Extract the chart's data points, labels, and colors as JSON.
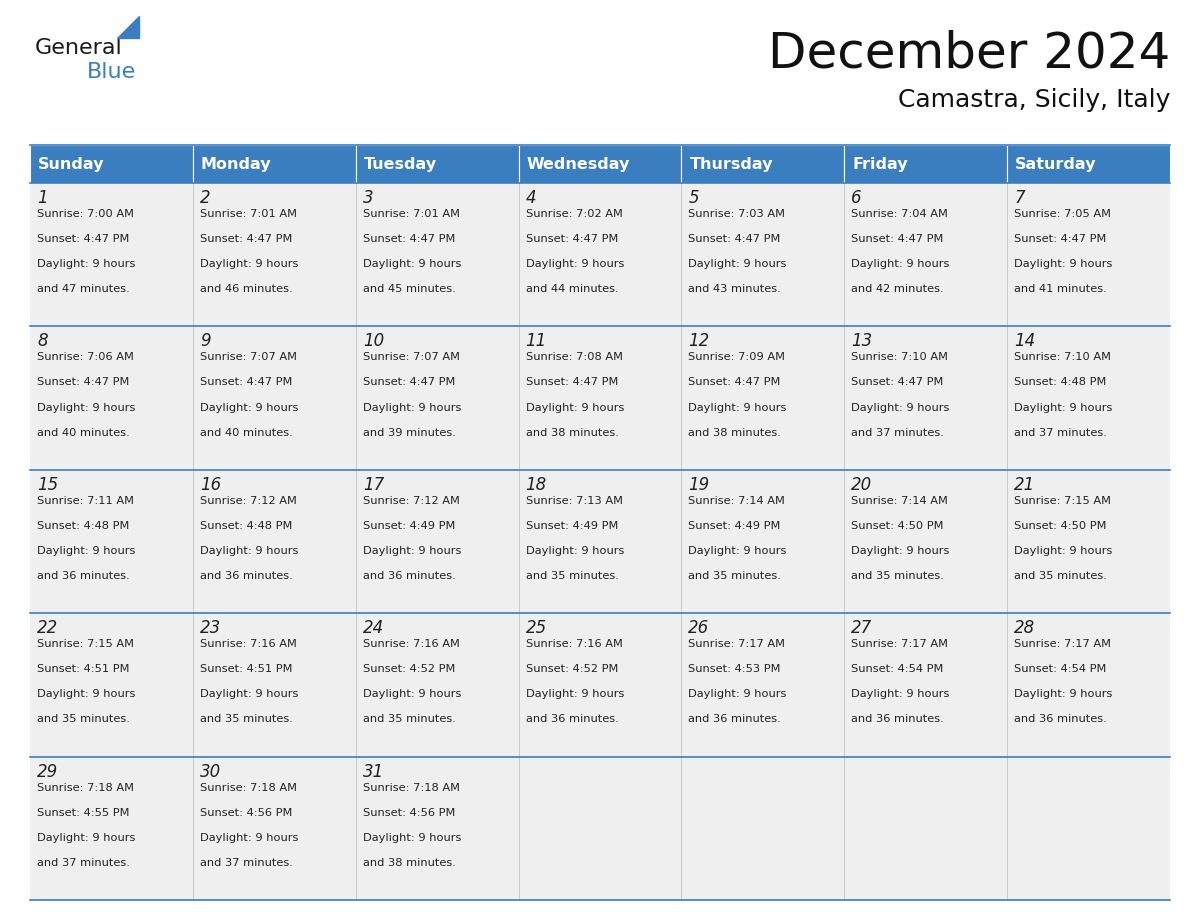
{
  "title": "December 2024",
  "subtitle": "Camastra, Sicily, Italy",
  "header_color": "#3a7ebf",
  "header_text_color": "#ffffff",
  "cell_bg_color": "#efefef",
  "border_color": "#3a7ebf",
  "text_color": "#222222",
  "logo_general_color": "#1a1a1a",
  "logo_blue_color": "#3a7ebf",
  "days_of_week": [
    "Sunday",
    "Monday",
    "Tuesday",
    "Wednesday",
    "Thursday",
    "Friday",
    "Saturday"
  ],
  "weeks": [
    [
      {
        "day": 1,
        "sunrise": "7:00 AM",
        "sunset": "4:47 PM",
        "daylight_hours": 9,
        "daylight_minutes": 47
      },
      {
        "day": 2,
        "sunrise": "7:01 AM",
        "sunset": "4:47 PM",
        "daylight_hours": 9,
        "daylight_minutes": 46
      },
      {
        "day": 3,
        "sunrise": "7:01 AM",
        "sunset": "4:47 PM",
        "daylight_hours": 9,
        "daylight_minutes": 45
      },
      {
        "day": 4,
        "sunrise": "7:02 AM",
        "sunset": "4:47 PM",
        "daylight_hours": 9,
        "daylight_minutes": 44
      },
      {
        "day": 5,
        "sunrise": "7:03 AM",
        "sunset": "4:47 PM",
        "daylight_hours": 9,
        "daylight_minutes": 43
      },
      {
        "day": 6,
        "sunrise": "7:04 AM",
        "sunset": "4:47 PM",
        "daylight_hours": 9,
        "daylight_minutes": 42
      },
      {
        "day": 7,
        "sunrise": "7:05 AM",
        "sunset": "4:47 PM",
        "daylight_hours": 9,
        "daylight_minutes": 41
      }
    ],
    [
      {
        "day": 8,
        "sunrise": "7:06 AM",
        "sunset": "4:47 PM",
        "daylight_hours": 9,
        "daylight_minutes": 40
      },
      {
        "day": 9,
        "sunrise": "7:07 AM",
        "sunset": "4:47 PM",
        "daylight_hours": 9,
        "daylight_minutes": 40
      },
      {
        "day": 10,
        "sunrise": "7:07 AM",
        "sunset": "4:47 PM",
        "daylight_hours": 9,
        "daylight_minutes": 39
      },
      {
        "day": 11,
        "sunrise": "7:08 AM",
        "sunset": "4:47 PM",
        "daylight_hours": 9,
        "daylight_minutes": 38
      },
      {
        "day": 12,
        "sunrise": "7:09 AM",
        "sunset": "4:47 PM",
        "daylight_hours": 9,
        "daylight_minutes": 38
      },
      {
        "day": 13,
        "sunrise": "7:10 AM",
        "sunset": "4:47 PM",
        "daylight_hours": 9,
        "daylight_minutes": 37
      },
      {
        "day": 14,
        "sunrise": "7:10 AM",
        "sunset": "4:48 PM",
        "daylight_hours": 9,
        "daylight_minutes": 37
      }
    ],
    [
      {
        "day": 15,
        "sunrise": "7:11 AM",
        "sunset": "4:48 PM",
        "daylight_hours": 9,
        "daylight_minutes": 36
      },
      {
        "day": 16,
        "sunrise": "7:12 AM",
        "sunset": "4:48 PM",
        "daylight_hours": 9,
        "daylight_minutes": 36
      },
      {
        "day": 17,
        "sunrise": "7:12 AM",
        "sunset": "4:49 PM",
        "daylight_hours": 9,
        "daylight_minutes": 36
      },
      {
        "day": 18,
        "sunrise": "7:13 AM",
        "sunset": "4:49 PM",
        "daylight_hours": 9,
        "daylight_minutes": 35
      },
      {
        "day": 19,
        "sunrise": "7:14 AM",
        "sunset": "4:49 PM",
        "daylight_hours": 9,
        "daylight_minutes": 35
      },
      {
        "day": 20,
        "sunrise": "7:14 AM",
        "sunset": "4:50 PM",
        "daylight_hours": 9,
        "daylight_minutes": 35
      },
      {
        "day": 21,
        "sunrise": "7:15 AM",
        "sunset": "4:50 PM",
        "daylight_hours": 9,
        "daylight_minutes": 35
      }
    ],
    [
      {
        "day": 22,
        "sunrise": "7:15 AM",
        "sunset": "4:51 PM",
        "daylight_hours": 9,
        "daylight_minutes": 35
      },
      {
        "day": 23,
        "sunrise": "7:16 AM",
        "sunset": "4:51 PM",
        "daylight_hours": 9,
        "daylight_minutes": 35
      },
      {
        "day": 24,
        "sunrise": "7:16 AM",
        "sunset": "4:52 PM",
        "daylight_hours": 9,
        "daylight_minutes": 35
      },
      {
        "day": 25,
        "sunrise": "7:16 AM",
        "sunset": "4:52 PM",
        "daylight_hours": 9,
        "daylight_minutes": 36
      },
      {
        "day": 26,
        "sunrise": "7:17 AM",
        "sunset": "4:53 PM",
        "daylight_hours": 9,
        "daylight_minutes": 36
      },
      {
        "day": 27,
        "sunrise": "7:17 AM",
        "sunset": "4:54 PM",
        "daylight_hours": 9,
        "daylight_minutes": 36
      },
      {
        "day": 28,
        "sunrise": "7:17 AM",
        "sunset": "4:54 PM",
        "daylight_hours": 9,
        "daylight_minutes": 36
      }
    ],
    [
      {
        "day": 29,
        "sunrise": "7:18 AM",
        "sunset": "4:55 PM",
        "daylight_hours": 9,
        "daylight_minutes": 37
      },
      {
        "day": 30,
        "sunrise": "7:18 AM",
        "sunset": "4:56 PM",
        "daylight_hours": 9,
        "daylight_minutes": 37
      },
      {
        "day": 31,
        "sunrise": "7:18 AM",
        "sunset": "4:56 PM",
        "daylight_hours": 9,
        "daylight_minutes": 38
      },
      null,
      null,
      null,
      null
    ]
  ]
}
